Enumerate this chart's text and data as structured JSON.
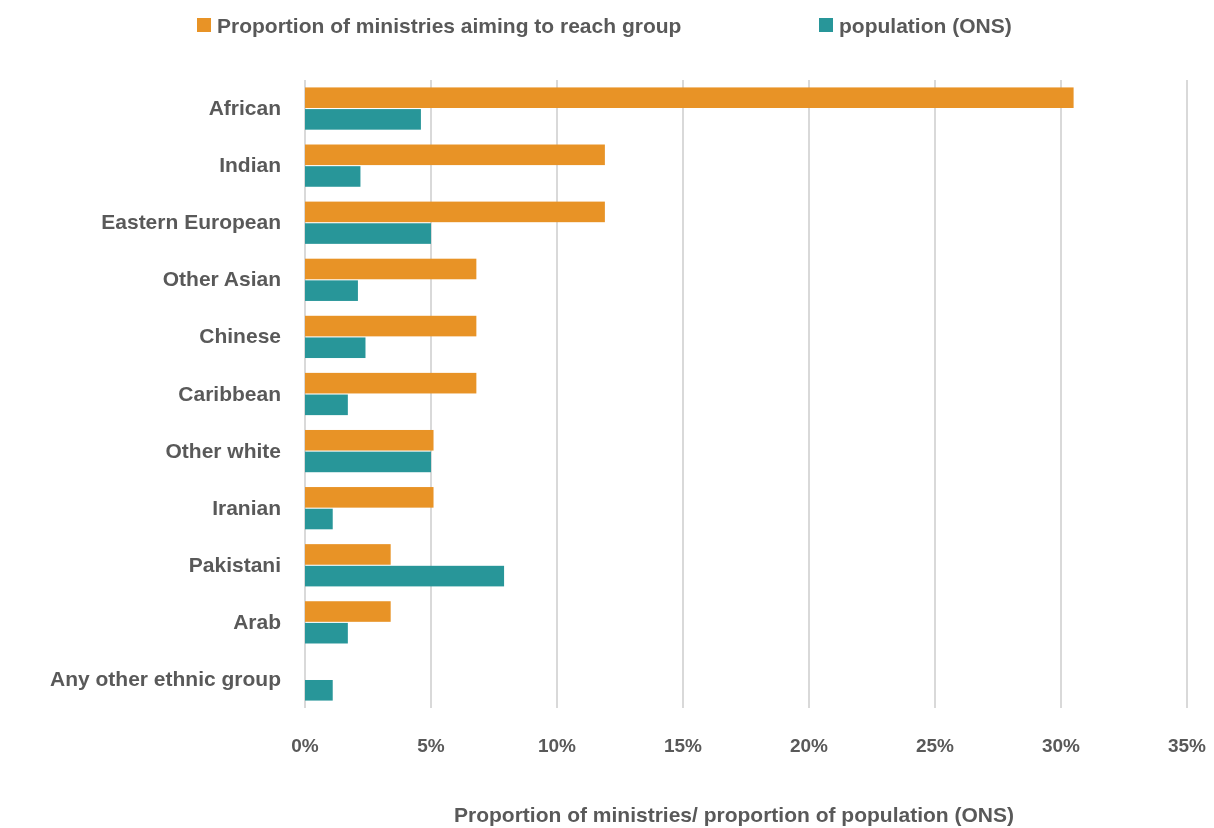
{
  "chart_data": {
    "type": "bar",
    "orientation": "horizontal",
    "categories": [
      "African",
      "Indian",
      "Eastern European",
      "Other Asian",
      "Chinese",
      "Caribbean",
      "Other white",
      "Iranian",
      "Pakistani",
      "Arab",
      "Any other ethnic group"
    ],
    "series": [
      {
        "name": "Proportion of ministries aiming to reach group",
        "color": "#e89326",
        "values": [
          30.5,
          11.9,
          11.9,
          6.8,
          6.8,
          6.8,
          5.1,
          5.1,
          3.4,
          3.4,
          0
        ]
      },
      {
        "name": "population (ONS)",
        "color": "#289699",
        "values": [
          4.6,
          2.2,
          5.0,
          2.1,
          2.4,
          1.7,
          5.0,
          1.1,
          7.9,
          1.7,
          1.1
        ]
      }
    ],
    "xlabel": "Proportion of ministries/ proportion of population (ONS)",
    "xlim": [
      0,
      35
    ],
    "xticks": [
      {
        "value": 0,
        "label": "0%"
      },
      {
        "value": 5,
        "label": "5%"
      },
      {
        "value": 10,
        "label": "10%"
      },
      {
        "value": 15,
        "label": "15%"
      },
      {
        "value": 20,
        "label": "20%"
      },
      {
        "value": 25,
        "label": "25%"
      },
      {
        "value": 30,
        "label": "30%"
      },
      {
        "value": 35,
        "label": "35%"
      }
    ],
    "grid": "x",
    "legend": "top"
  }
}
